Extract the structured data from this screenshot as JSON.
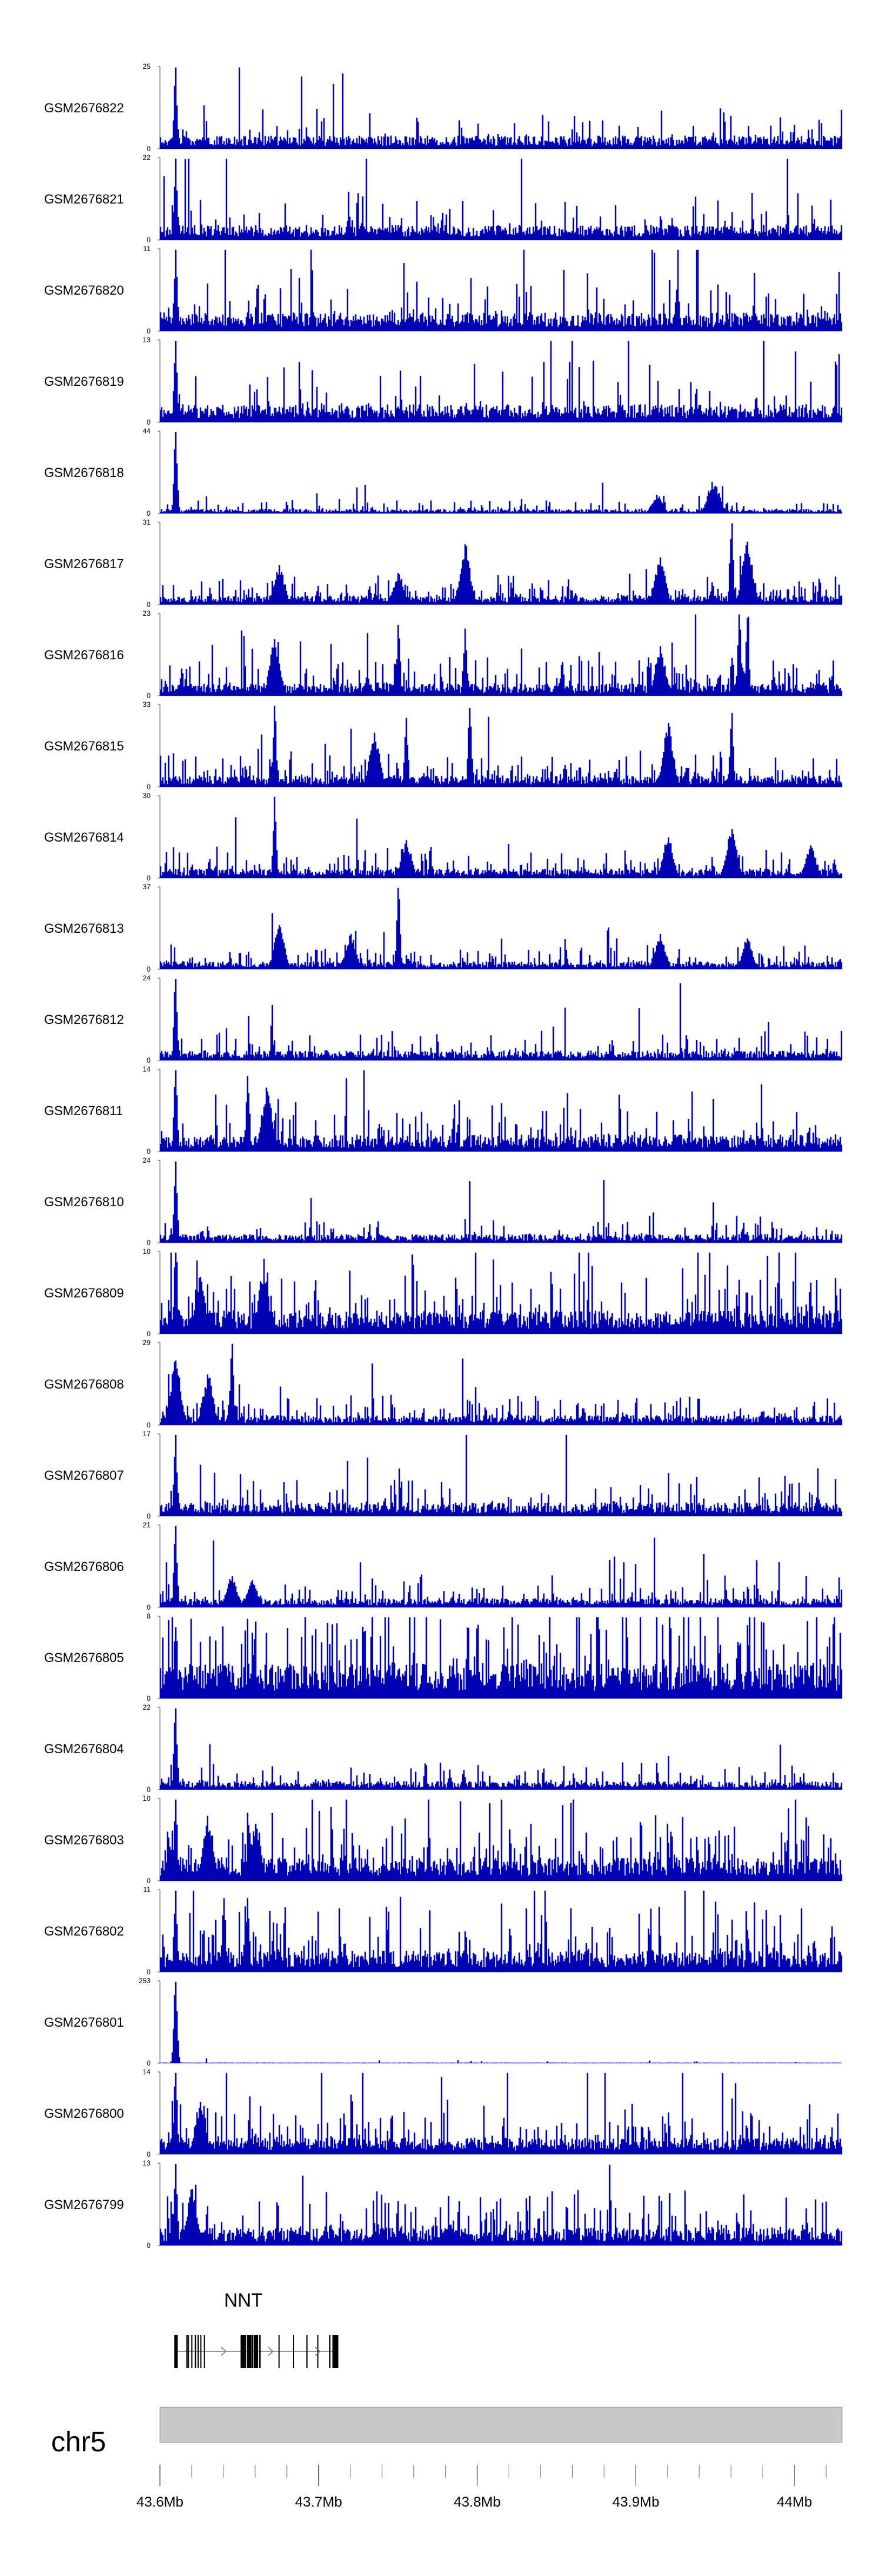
{
  "chart_data": {
    "type": "area",
    "fill_color": "#0000b3",
    "chromosome": "chr5",
    "x_range_mb": [
      43.6,
      44.03
    ],
    "x_ticks_mb": [
      43.6,
      43.7,
      43.8,
      43.9,
      44.0
    ],
    "x_tick_labels": [
      "43.6Mb",
      "43.7Mb",
      "43.8Mb",
      "43.9Mb",
      "44Mb"
    ],
    "gene": {
      "name": "NNT",
      "start_mb": 43.609,
      "end_mb": 43.711,
      "strand": "+"
    },
    "tracks": [
      {
        "name": "GSM2676822",
        "ymax": 25,
        "ymin": 0,
        "baseline": 3.5,
        "spikiness": 0.25,
        "peaks": [
          [
            43.6095,
            25
          ]
        ]
      },
      {
        "name": "GSM2676821",
        "ymax": 22,
        "ymin": 0,
        "baseline": 3.5,
        "spikiness": 0.28,
        "peaks": [
          [
            43.6095,
            22
          ]
        ]
      },
      {
        "name": "GSM2676820",
        "ymax": 11,
        "ymin": 0,
        "baseline": 2.2,
        "spikiness": 0.28,
        "peaks": [
          [
            43.6095,
            11
          ]
        ]
      },
      {
        "name": "GSM2676819",
        "ymax": 13,
        "ymin": 0,
        "baseline": 2.5,
        "spikiness": 0.3,
        "peaks": [
          [
            43.6095,
            13
          ]
        ]
      },
      {
        "name": "GSM2676818",
        "ymax": 44,
        "ymin": 0,
        "baseline": 2,
        "spikiness": 0.4,
        "peaks": [
          [
            43.6095,
            44
          ],
          [
            43.948,
            17
          ],
          [
            43.95,
            15
          ],
          [
            43.913,
            10
          ]
        ]
      },
      {
        "name": "GSM2676817",
        "ymax": 31,
        "ymin": 0,
        "baseline": 3,
        "spikiness": 0.55,
        "peaks": [
          [
            43.792,
            23
          ],
          [
            43.96,
            31
          ],
          [
            43.97,
            24
          ],
          [
            43.75,
            12
          ],
          [
            43.915,
            18
          ],
          [
            43.675,
            15
          ]
        ]
      },
      {
        "name": "GSM2676816",
        "ymax": 23,
        "ymin": 0,
        "baseline": 3,
        "spikiness": 0.6,
        "peaks": [
          [
            43.75,
            20
          ],
          [
            43.792,
            19
          ],
          [
            43.965,
            23
          ],
          [
            43.97,
            22
          ],
          [
            43.915,
            14
          ],
          [
            43.672,
            16
          ]
        ]
      },
      {
        "name": "GSM2676815",
        "ymax": 33,
        "ymin": 0,
        "baseline": 4,
        "spikiness": 0.6,
        "peaks": [
          [
            43.672,
            33
          ],
          [
            43.795,
            32
          ],
          [
            43.755,
            28
          ],
          [
            43.96,
            30
          ],
          [
            43.92,
            26
          ],
          [
            43.735,
            22
          ]
        ]
      },
      {
        "name": "GSM2676814",
        "ymax": 30,
        "ymin": 0,
        "baseline": 3,
        "spikiness": 0.5,
        "peaks": [
          [
            43.672,
            30
          ],
          [
            43.755,
            14
          ],
          [
            43.92,
            15
          ],
          [
            43.96,
            18
          ],
          [
            44.01,
            12
          ]
        ]
      },
      {
        "name": "GSM2676813",
        "ymax": 37,
        "ymin": 0,
        "baseline": 3,
        "spikiness": 0.5,
        "peaks": [
          [
            43.75,
            37
          ],
          [
            43.675,
            20
          ],
          [
            43.72,
            16
          ],
          [
            43.915,
            16
          ],
          [
            43.97,
            14
          ]
        ]
      },
      {
        "name": "GSM2676812",
        "ymax": 24,
        "ymin": 0,
        "baseline": 2.5,
        "spikiness": 0.35,
        "peaks": [
          [
            43.6095,
            24
          ]
        ]
      },
      {
        "name": "GSM2676811",
        "ymax": 14,
        "ymin": 0,
        "baseline": 2.5,
        "spikiness": 0.5,
        "peaks": [
          [
            43.6095,
            14
          ],
          [
            43.655,
            13
          ],
          [
            43.667,
            11
          ]
        ]
      },
      {
        "name": "GSM2676810",
        "ymax": 24,
        "ymin": 0,
        "baseline": 2.2,
        "spikiness": 0.3,
        "peaks": [
          [
            43.6095,
            24
          ]
        ]
      },
      {
        "name": "GSM2676809",
        "ymax": 10,
        "ymin": 0,
        "baseline": 2.5,
        "spikiness": 0.5,
        "peaks": [
          [
            43.6095,
            10
          ],
          [
            43.625,
            7
          ],
          [
            43.665,
            8
          ]
        ]
      },
      {
        "name": "GSM2676808",
        "ymax": 29,
        "ymin": 0,
        "baseline": 3,
        "spikiness": 0.5,
        "peaks": [
          [
            43.6095,
            23
          ],
          [
            43.645,
            29
          ],
          [
            43.63,
            18
          ]
        ]
      },
      {
        "name": "GSM2676807",
        "ymax": 17,
        "ymin": 0,
        "baseline": 2.5,
        "spikiness": 0.35,
        "peaks": [
          [
            43.6095,
            17
          ]
        ]
      },
      {
        "name": "GSM2676806",
        "ymax": 21,
        "ymin": 0,
        "baseline": 2,
        "spikiness": 0.45,
        "peaks": [
          [
            43.6095,
            21
          ],
          [
            43.645,
            8
          ],
          [
            43.658,
            7
          ]
        ]
      },
      {
        "name": "GSM2676805",
        "ymax": 8,
        "ymin": 0,
        "baseline": 3,
        "spikiness": 0.55,
        "peaks": [
          [
            43.6095,
            7
          ]
        ]
      },
      {
        "name": "GSM2676804",
        "ymax": 22,
        "ymin": 0,
        "baseline": 2,
        "spikiness": 0.4,
        "peaks": [
          [
            43.6095,
            22
          ]
        ]
      },
      {
        "name": "GSM2676803",
        "ymax": 10,
        "ymin": 0,
        "baseline": 2.5,
        "spikiness": 0.5,
        "peaks": [
          [
            43.6095,
            10
          ],
          [
            43.63,
            8
          ],
          [
            43.66,
            7
          ]
        ]
      },
      {
        "name": "GSM2676802",
        "ymax": 11,
        "ymin": 0,
        "baseline": 2.5,
        "spikiness": 0.55,
        "peaks": [
          [
            43.6095,
            11
          ],
          [
            43.64,
            10
          ],
          [
            43.655,
            10
          ]
        ]
      },
      {
        "name": "GSM2676801",
        "ymax": 253,
        "ymin": 0,
        "baseline": 1.5,
        "spikiness": 0.05,
        "peaks": [
          [
            43.6095,
            253
          ]
        ]
      },
      {
        "name": "GSM2676800",
        "ymax": 14,
        "ymin": 0,
        "baseline": 2.5,
        "spikiness": 0.5,
        "peaks": [
          [
            43.6095,
            14
          ],
          [
            43.625,
            9
          ]
        ]
      },
      {
        "name": "GSM2676799",
        "ymax": 13,
        "ymin": 0,
        "baseline": 2.5,
        "spikiness": 0.5,
        "peaks": [
          [
            43.6095,
            13
          ],
          [
            43.62,
            9
          ]
        ]
      }
    ]
  }
}
